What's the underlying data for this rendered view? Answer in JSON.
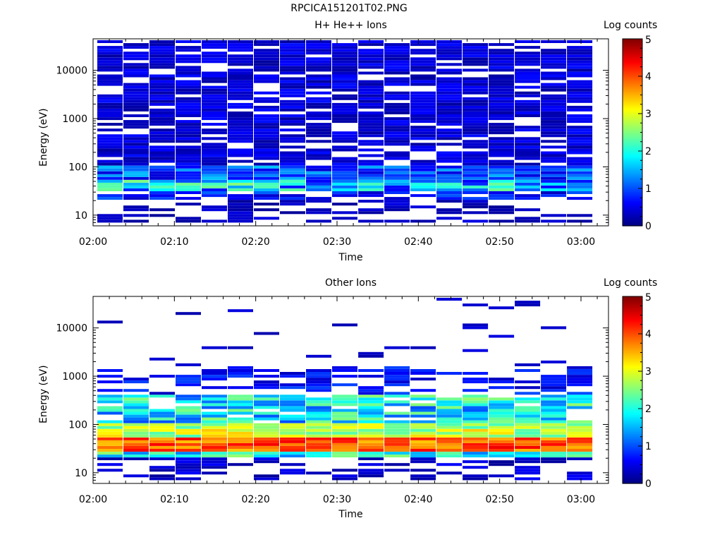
{
  "window": {
    "title": "RPCICA151201T02.PNG"
  },
  "chart_data": [
    {
      "type": "heatmap",
      "title": "H+ He++ Ions",
      "xlabel": "Time",
      "ylabel": "Energy (eV)",
      "x_ticks": [
        "02:00",
        "02:10",
        "02:20",
        "02:30",
        "02:40",
        "02:50",
        "03:00"
      ],
      "y_ticks": [
        "10",
        "100",
        "1000",
        "10000"
      ],
      "y_scale": "log",
      "ylim": [
        6,
        45000
      ],
      "colorbar": {
        "title": "Log counts",
        "ticks": [
          "0",
          "1",
          "2",
          "3",
          "4",
          "5"
        ],
        "range": [
          0,
          5
        ]
      },
      "energy_level_profile": "high-energy bins sparse at log 0.1-0.6; peak around 40-60 eV reaching ~2.5-3 log counts",
      "time_bins": 19
    },
    {
      "type": "heatmap",
      "title": "Other Ions",
      "xlabel": "Time",
      "ylabel": "Energy (eV)",
      "x_ticks": [
        "02:00",
        "02:10",
        "02:20",
        "02:30",
        "02:40",
        "02:50",
        "03:00"
      ],
      "y_ticks": [
        "10",
        "100",
        "1000",
        "10000"
      ],
      "y_scale": "log",
      "ylim": [
        6,
        45000
      ],
      "colorbar": {
        "title": "Log counts",
        "ticks": [
          "0",
          "1",
          "2",
          "3",
          "4",
          "5"
        ],
        "range": [
          0,
          5
        ]
      },
      "energy_level_profile": "strong band 30-60 eV reaching ~4-4.5 log counts; fading up to ~1000 eV; sparse points above",
      "time_bins": 19
    }
  ]
}
